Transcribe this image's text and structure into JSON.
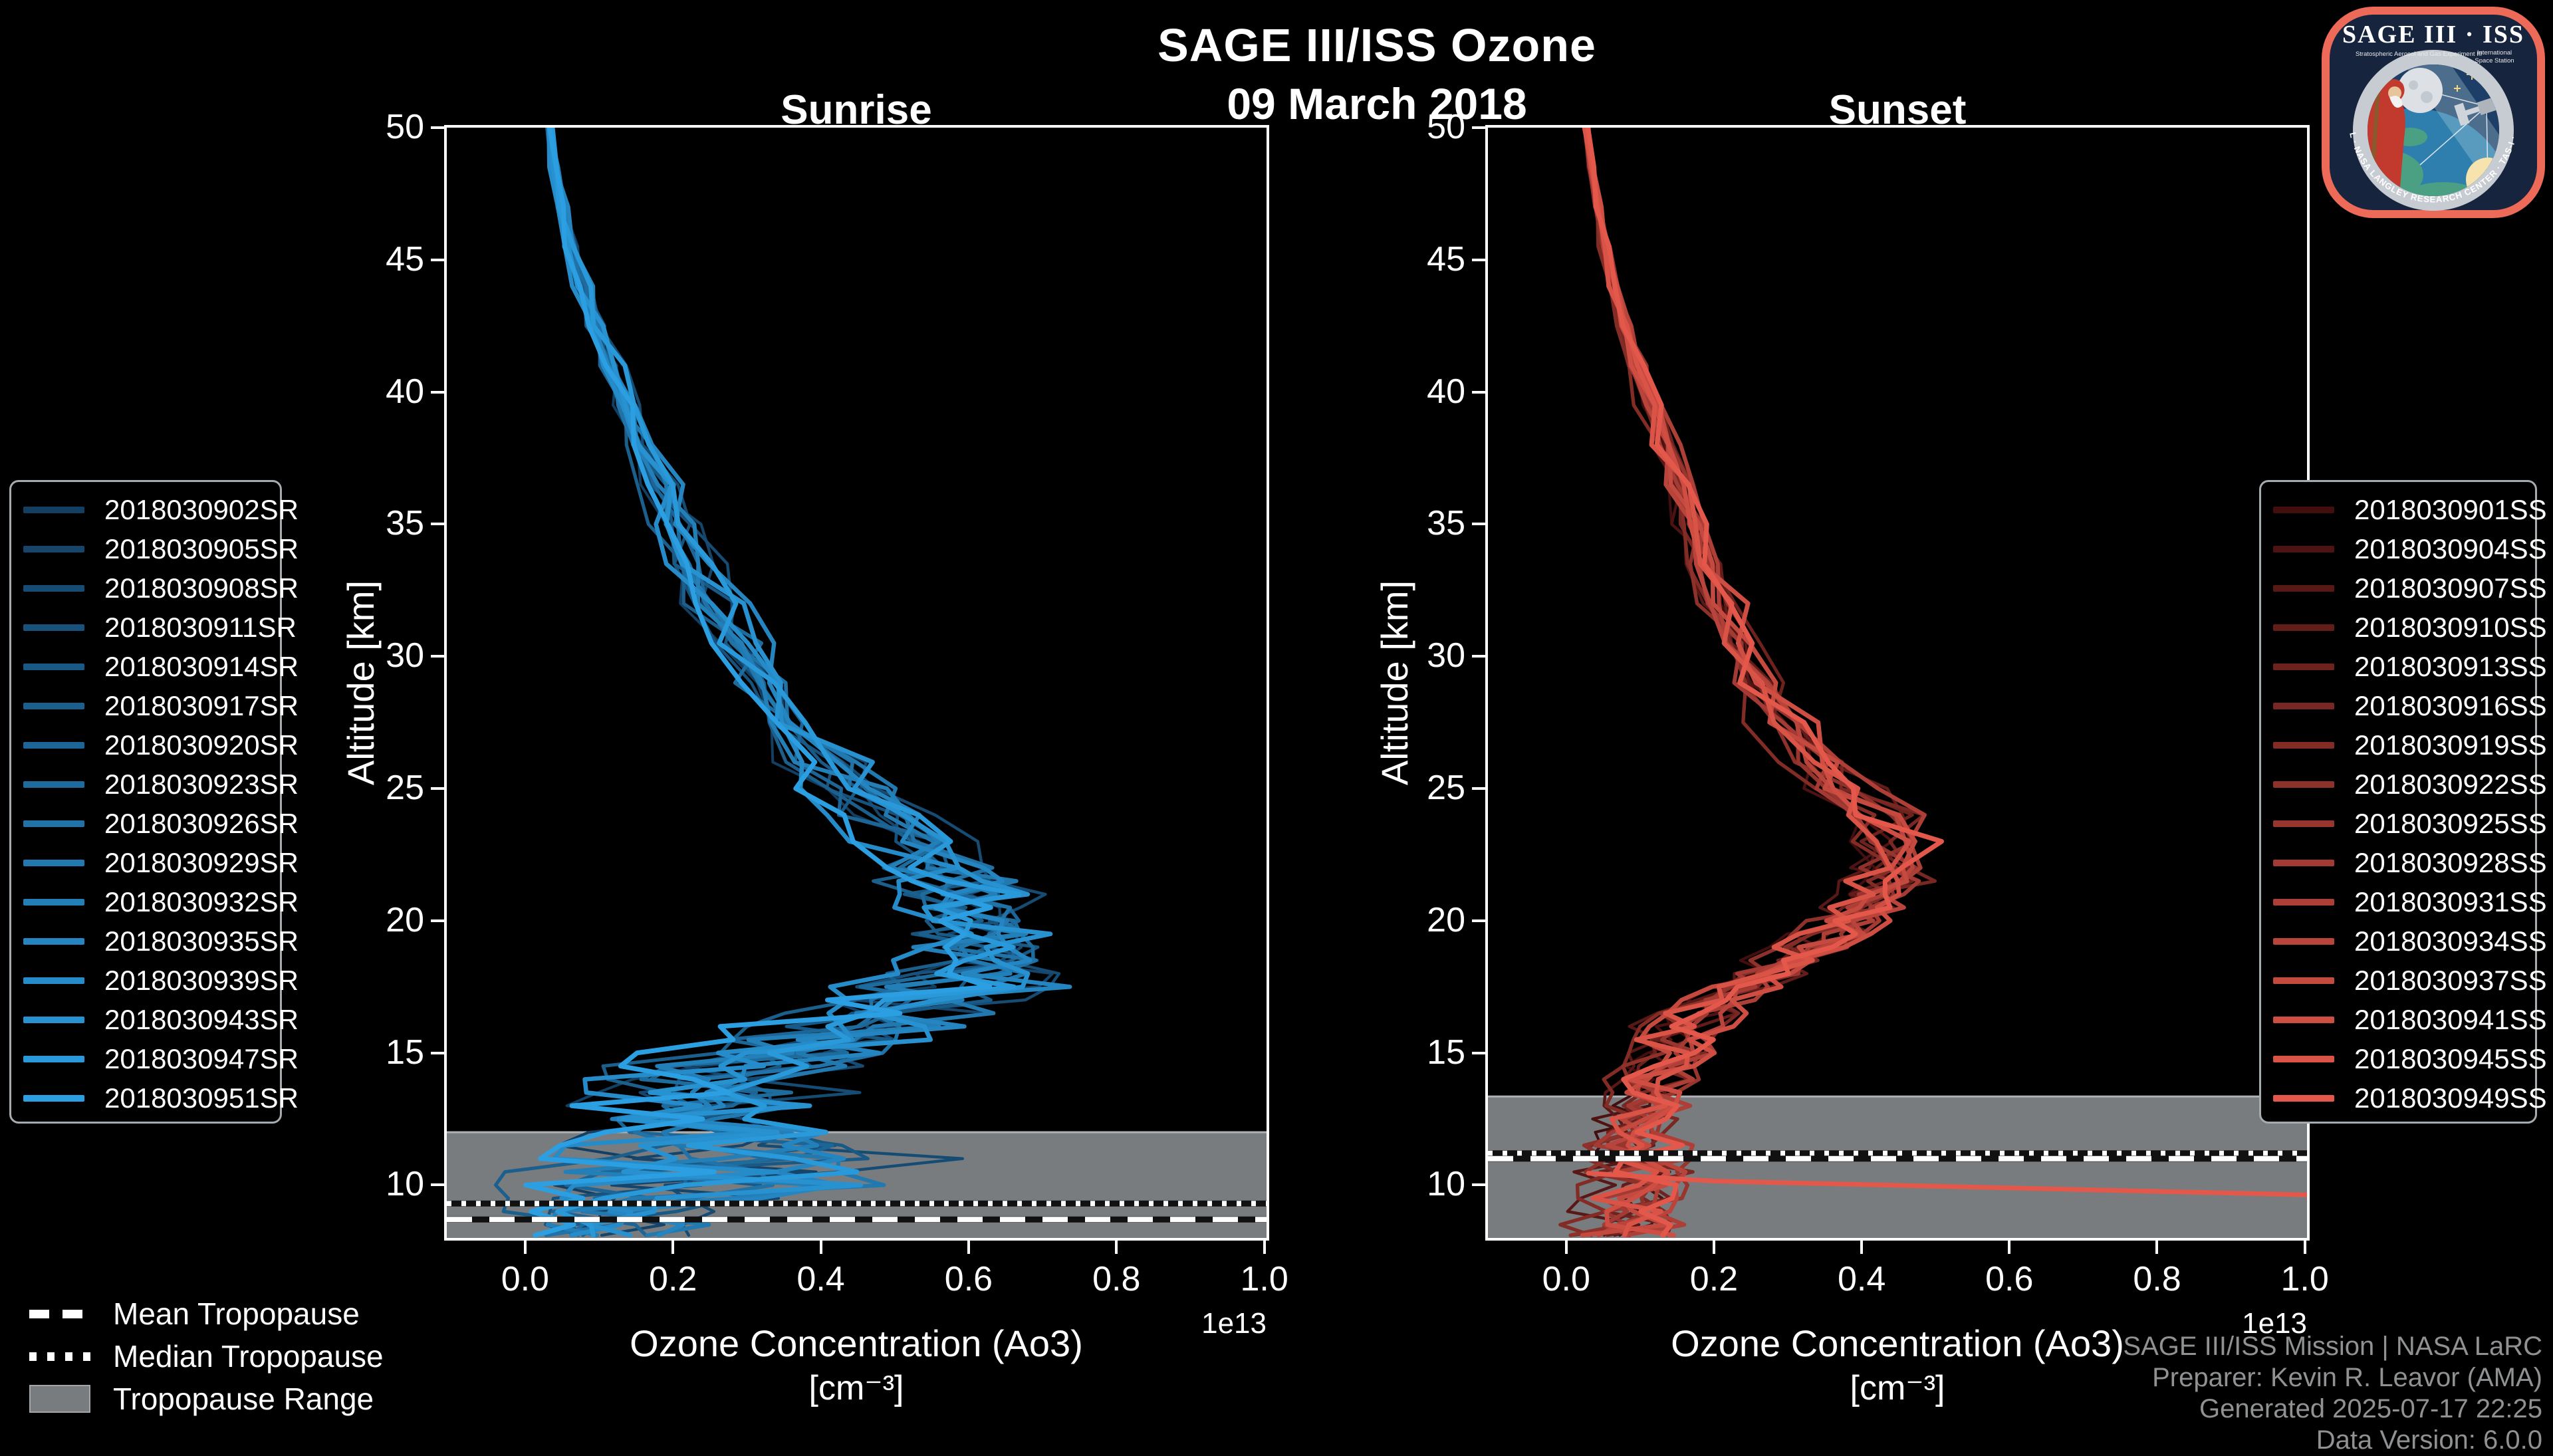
{
  "title": "SAGE III/ISS Ozone",
  "subtitle": "09 March 2018",
  "panels": {
    "sunrise_title": "Sunrise",
    "sunset_title": "Sunset"
  },
  "axes": {
    "ylabel": "Altitude [km]",
    "xlabel_line1": "Ozone Concentration (Ao3)",
    "xlabel_line2": "[cm⁻³]",
    "offset_text": "1e13",
    "x_ticks": [
      "0.0",
      "0.2",
      "0.4",
      "0.6",
      "0.8",
      "1.0"
    ],
    "y_ticks": [
      "50",
      "45",
      "40",
      "35",
      "30",
      "25",
      "20",
      "15",
      "10"
    ]
  },
  "tropopause_legend": {
    "mean": "Mean Tropopause",
    "median": "Median Tropopause",
    "range": "Tropopause Range"
  },
  "attribution": [
    "SAGE III/ISS Mission | NASA LaRC",
    "Preparer: Kevin R. Leavor (AMA)",
    "Generated 2025-07-17 22:25",
    "Data Version: 6.0.0"
  ],
  "logo": {
    "title": "SAGE III · ISS",
    "sub_left": "Stratospheric Aerosol and Gas Experiment III",
    "sub_right1": "International",
    "sub_right2": "Space Station",
    "ring_text": "BALL · NASA LANGLEY RESEARCH CENTER · TAS-I · ESA"
  },
  "colors": {
    "background": "#000000",
    "spine": "#ffffff",
    "band": "#797c7f",
    "band_edge": "#aeb2b5",
    "attribution_text": "#8f9193",
    "legend_border": "#a6abb0"
  },
  "chart_data": [
    {
      "type": "line",
      "title": "Sunrise",
      "xlabel": "Ozone Concentration (Ao3) [cm^-3]",
      "ylabel": "Altitude [km]",
      "x_scale_factor": "1e13",
      "xlim": [
        -0.106,
        1.003
      ],
      "ylim": [
        8.0,
        50.0
      ],
      "grid": false,
      "legend_position": "outside-left",
      "color_start": "#133f63",
      "color_end": "#2b9fe2",
      "series_labels": [
        "2018030902SR",
        "2018030905SR",
        "2018030908SR",
        "2018030911SR",
        "2018030914SR",
        "2018030917SR",
        "2018030920SR",
        "2018030923SR",
        "2018030926SR",
        "2018030929SR",
        "2018030932SR",
        "2018030935SR",
        "2018030939SR",
        "2018030943SR",
        "2018030947SR",
        "2018030951SR"
      ],
      "altitudes_km": [
        50.0,
        48.5,
        47.0,
        45.5,
        44.0,
        42.5,
        41.0,
        39.5,
        38.0,
        36.5,
        35.0,
        33.5,
        32.0,
        30.5,
        29.0,
        27.5,
        26.0,
        25.0,
        24.0,
        23.0,
        22.0,
        21.5,
        21.0,
        20.5,
        20.0,
        19.5,
        19.0,
        18.5,
        18.0,
        17.5,
        17.0,
        16.5,
        16.0,
        15.5,
        15.0,
        14.5,
        14.0,
        13.5,
        13.0,
        12.5,
        12.0,
        11.5,
        11.0,
        10.5,
        10.0,
        9.5,
        9.0,
        8.5,
        8.1
      ],
      "mean_concentration_1e13": [
        0.033,
        0.04,
        0.05,
        0.062,
        0.078,
        0.097,
        0.118,
        0.14,
        0.163,
        0.185,
        0.208,
        0.232,
        0.258,
        0.288,
        0.322,
        0.362,
        0.41,
        0.445,
        0.485,
        0.525,
        0.56,
        0.575,
        0.59,
        0.6,
        0.61,
        0.615,
        0.62,
        0.615,
        0.6,
        0.575,
        0.54,
        0.5,
        0.45,
        0.4,
        0.35,
        0.305,
        0.27,
        0.245,
        0.235,
        0.24,
        0.26,
        0.28,
        0.3,
        0.3,
        0.26,
        0.19,
        0.12,
        0.12,
        0.1
      ],
      "spread_1e13": [
        0.004,
        0.005,
        0.006,
        0.008,
        0.01,
        0.012,
        0.015,
        0.018,
        0.021,
        0.024,
        0.027,
        0.03,
        0.034,
        0.038,
        0.042,
        0.047,
        0.052,
        0.056,
        0.06,
        0.065,
        0.07,
        0.072,
        0.075,
        0.078,
        0.08,
        0.085,
        0.09,
        0.095,
        0.1,
        0.125,
        0.11,
        0.115,
        0.12,
        0.125,
        0.13,
        0.13,
        0.13,
        0.13,
        0.135,
        0.14,
        0.15,
        0.17,
        0.2,
        0.24,
        0.19,
        0.14,
        0.1,
        0.1,
        0.09
      ],
      "tropopause": {
        "mean_km": 8.7,
        "median_km": 9.3,
        "range_top_km": 12.0,
        "range_bottom_km": 8.0
      }
    },
    {
      "type": "line",
      "title": "Sunset",
      "xlabel": "Ozone Concentration (Ao3) [cm^-3]",
      "ylabel": "Altitude [km]",
      "x_scale_factor": "1e13",
      "xlim": [
        -0.106,
        1.003
      ],
      "ylim": [
        8.0,
        50.0
      ],
      "grid": false,
      "legend_position": "outside-right",
      "color_start": "#420e0e",
      "color_end": "#e4584b",
      "series_labels": [
        "2018030901SS",
        "2018030904SS",
        "2018030907SS",
        "2018030910SS",
        "2018030913SS",
        "2018030916SS",
        "2018030919SS",
        "2018030922SS",
        "2018030925SS",
        "2018030928SS",
        "2018030931SS",
        "2018030934SS",
        "2018030937SS",
        "2018030941SS",
        "2018030945SS",
        "2018030949SS"
      ],
      "altitudes_km": [
        50.0,
        48.5,
        47.0,
        45.5,
        44.0,
        42.5,
        41.0,
        39.5,
        38.0,
        36.5,
        35.0,
        33.5,
        32.0,
        30.5,
        29.0,
        27.5,
        26.0,
        25.0,
        24.0,
        23.0,
        22.0,
        21.5,
        21.0,
        20.5,
        20.0,
        19.5,
        19.0,
        18.5,
        18.0,
        17.5,
        17.0,
        16.5,
        16.0,
        15.5,
        15.0,
        14.5,
        14.0,
        13.5,
        13.0,
        12.5,
        12.0,
        11.5,
        11.0,
        10.5,
        10.0,
        9.5,
        9.0,
        8.5,
        8.1
      ],
      "mean_concentration_1e13": [
        0.028,
        0.034,
        0.042,
        0.052,
        0.064,
        0.079,
        0.096,
        0.114,
        0.133,
        0.152,
        0.171,
        0.191,
        0.212,
        0.236,
        0.263,
        0.295,
        0.335,
        0.38,
        0.425,
        0.45,
        0.445,
        0.435,
        0.42,
        0.405,
        0.39,
        0.36,
        0.33,
        0.3,
        0.27,
        0.24,
        0.21,
        0.185,
        0.165,
        0.15,
        0.14,
        0.13,
        0.12,
        0.115,
        0.11,
        0.105,
        0.1,
        0.1,
        0.1,
        0.1,
        0.1,
        0.095,
        0.09,
        0.085,
        0.08
      ],
      "spread_1e13": [
        0.003,
        0.004,
        0.005,
        0.006,
        0.008,
        0.01,
        0.012,
        0.014,
        0.017,
        0.019,
        0.022,
        0.025,
        0.028,
        0.031,
        0.035,
        0.039,
        0.043,
        0.046,
        0.05,
        0.053,
        0.053,
        0.052,
        0.051,
        0.05,
        0.05,
        0.05,
        0.05,
        0.05,
        0.05,
        0.05,
        0.05,
        0.05,
        0.05,
        0.05,
        0.05,
        0.05,
        0.05,
        0.05,
        0.052,
        0.054,
        0.056,
        0.058,
        0.06,
        0.06,
        0.058,
        0.055,
        0.06,
        0.06,
        0.055
      ],
      "anomaly_line": {
        "series": "2018030949SS",
        "x_1e13": [
          0.03,
          0.2,
          1.05
        ],
        "alt_km": [
          10.45,
          10.15,
          9.6
        ]
      },
      "tropopause": {
        "mean_km": 11.0,
        "median_km": 11.2,
        "range_top_km": 13.35,
        "range_bottom_km": 8.0
      }
    }
  ]
}
